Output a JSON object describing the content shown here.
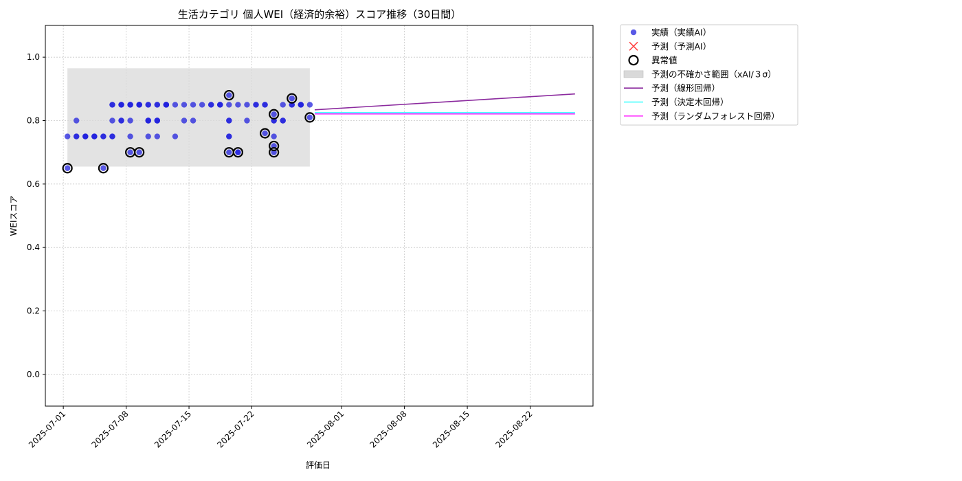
{
  "chart_data": {
    "type": "scatter",
    "title": "生活カテゴリ 個人WEI（経済的余裕）スコア推移（30日間）",
    "xlabel": "評価日",
    "ylabel": "WEIスコア",
    "xlim": [
      "2025-06-29",
      "2025-08-29"
    ],
    "ylim": [
      -0.1,
      1.1
    ],
    "yticks": [
      0.0,
      0.2,
      0.4,
      0.6,
      0.8,
      1.0
    ],
    "xticks": [
      "2025-07-01",
      "2025-07-08",
      "2025-07-15",
      "2025-07-22",
      "2025-08-01",
      "2025-08-08",
      "2025-08-15",
      "2025-08-22"
    ],
    "grid": true,
    "legend_position": "outside-top-right",
    "colors": {
      "actual": "#2222dd",
      "forecast_marker": "#ff4444",
      "anomaly_edge": "#000000",
      "uncertainty_band": "#d9d9d9",
      "linear": "#8b2a9e",
      "tree": "#33ffff",
      "forest": "#ff33ff"
    },
    "legend": [
      {
        "key": "actual",
        "label": "実績（実績AI）"
      },
      {
        "key": "forecast",
        "label": "予測（予測AI）"
      },
      {
        "key": "anomaly",
        "label": "異常値"
      },
      {
        "key": "band",
        "label": "予測の不確かさ範囲（xAI/３σ）"
      },
      {
        "key": "linear",
        "label": "予測（線形回帰）"
      },
      {
        "key": "tree",
        "label": "予測（決定木回帰）"
      },
      {
        "key": "forest",
        "label": "予測（ランダムフォレスト回帰）"
      }
    ],
    "uncertainty_band": {
      "x": [
        "2025-07-01",
        "2025-07-28"
      ],
      "y": [
        0.655,
        0.965
      ]
    },
    "series": [
      {
        "name": "実績（実績AI）",
        "points": [
          [
            "2025-07-01",
            0.75
          ],
          [
            "2025-07-01",
            0.65
          ],
          [
            "2025-07-02",
            0.75
          ],
          [
            "2025-07-02",
            0.75
          ],
          [
            "2025-07-02",
            0.8
          ],
          [
            "2025-07-03",
            0.75
          ],
          [
            "2025-07-03",
            0.75
          ],
          [
            "2025-07-03",
            0.75
          ],
          [
            "2025-07-04",
            0.75
          ],
          [
            "2025-07-04",
            0.75
          ],
          [
            "2025-07-04",
            0.75
          ],
          [
            "2025-07-05",
            0.75
          ],
          [
            "2025-07-05",
            0.65
          ],
          [
            "2025-07-05",
            0.75
          ],
          [
            "2025-07-06",
            0.85
          ],
          [
            "2025-07-06",
            0.75
          ],
          [
            "2025-07-06",
            0.85
          ],
          [
            "2025-07-06",
            0.75
          ],
          [
            "2025-07-06",
            0.8
          ],
          [
            "2025-07-07",
            0.8
          ],
          [
            "2025-07-07",
            0.8
          ],
          [
            "2025-07-07",
            0.85
          ],
          [
            "2025-07-07",
            0.85
          ],
          [
            "2025-07-07",
            0.85
          ],
          [
            "2025-07-08",
            0.85
          ],
          [
            "2025-07-08",
            0.8
          ],
          [
            "2025-07-08",
            0.85
          ],
          [
            "2025-07-08",
            0.7
          ],
          [
            "2025-07-08",
            0.75
          ],
          [
            "2025-07-08",
            0.85
          ],
          [
            "2025-07-09",
            0.85
          ],
          [
            "2025-07-09",
            0.7
          ],
          [
            "2025-07-09",
            0.85
          ],
          [
            "2025-07-09",
            0.85
          ],
          [
            "2025-07-09",
            0.85
          ],
          [
            "2025-07-10",
            0.85
          ],
          [
            "2025-07-10",
            0.8
          ],
          [
            "2025-07-10",
            0.85
          ],
          [
            "2025-07-10",
            0.8
          ],
          [
            "2025-07-10",
            0.8
          ],
          [
            "2025-07-10",
            0.75
          ],
          [
            "2025-07-11",
            0.8
          ],
          [
            "2025-07-11",
            0.75
          ],
          [
            "2025-07-11",
            0.85
          ],
          [
            "2025-07-11",
            0.8
          ],
          [
            "2025-07-11",
            0.8
          ],
          [
            "2025-07-11",
            0.85
          ],
          [
            "2025-07-12",
            0.85
          ],
          [
            "2025-07-12",
            0.85
          ],
          [
            "2025-07-12",
            0.85
          ],
          [
            "2025-07-12",
            0.85
          ],
          [
            "2025-07-13",
            0.85
          ],
          [
            "2025-07-13",
            0.75
          ],
          [
            "2025-07-14",
            0.85
          ],
          [
            "2025-07-14",
            0.8
          ],
          [
            "2025-07-15",
            0.85
          ],
          [
            "2025-07-15",
            0.8
          ],
          [
            "2025-07-16",
            0.85
          ],
          [
            "2025-07-17",
            0.85
          ],
          [
            "2025-07-17",
            0.85
          ],
          [
            "2025-07-18",
            0.85
          ],
          [
            "2025-07-18",
            0.85
          ],
          [
            "2025-07-18",
            0.85
          ],
          [
            "2025-07-19",
            0.75
          ],
          [
            "2025-07-19",
            0.88
          ],
          [
            "2025-07-19",
            0.85
          ],
          [
            "2025-07-19",
            0.8
          ],
          [
            "2025-07-19",
            0.75
          ],
          [
            "2025-07-19",
            0.7
          ],
          [
            "2025-07-19",
            0.8
          ],
          [
            "2025-07-20",
            0.85
          ],
          [
            "2025-07-20",
            0.7
          ],
          [
            "2025-07-20",
            0.7
          ],
          [
            "2025-07-21",
            0.85
          ],
          [
            "2025-07-21",
            0.8
          ],
          [
            "2025-07-22",
            0.85
          ],
          [
            "2025-07-22",
            0.85
          ],
          [
            "2025-07-23",
            0.85
          ],
          [
            "2025-07-23",
            0.76
          ],
          [
            "2025-07-23",
            0.85
          ],
          [
            "2025-07-24",
            0.75
          ],
          [
            "2025-07-24",
            0.8
          ],
          [
            "2025-07-24",
            0.82
          ],
          [
            "2025-07-24",
            0.8
          ],
          [
            "2025-07-24",
            0.7
          ],
          [
            "2025-07-24",
            0.72
          ],
          [
            "2025-07-25",
            0.85
          ],
          [
            "2025-07-25",
            0.8
          ],
          [
            "2025-07-25",
            0.8
          ],
          [
            "2025-07-26",
            0.85
          ],
          [
            "2025-07-26",
            0.85
          ],
          [
            "2025-07-26",
            0.87
          ],
          [
            "2025-07-27",
            0.85
          ],
          [
            "2025-07-27",
            0.85
          ],
          [
            "2025-07-27",
            0.85
          ],
          [
            "2025-07-28",
            0.81
          ],
          [
            "2025-07-28",
            0.85
          ]
        ]
      },
      {
        "name": "異常値",
        "points": [
          [
            "2025-07-01",
            0.65
          ],
          [
            "2025-07-05",
            0.65
          ],
          [
            "2025-07-08",
            0.7
          ],
          [
            "2025-07-09",
            0.7
          ],
          [
            "2025-07-19",
            0.88
          ],
          [
            "2025-07-19",
            0.7
          ],
          [
            "2025-07-20",
            0.7
          ],
          [
            "2025-07-23",
            0.76
          ],
          [
            "2025-07-24",
            0.82
          ],
          [
            "2025-07-24",
            0.7
          ],
          [
            "2025-07-24",
            0.72
          ],
          [
            "2025-07-26",
            0.87
          ],
          [
            "2025-07-28",
            0.81
          ]
        ]
      },
      {
        "name": "予測（線形回帰）",
        "line": [
          [
            "2025-07-29",
            0.834
          ],
          [
            "2025-08-27",
            0.884
          ]
        ]
      },
      {
        "name": "予測（決定木回帰）",
        "line": [
          [
            "2025-07-29",
            0.825
          ],
          [
            "2025-08-27",
            0.825
          ]
        ]
      },
      {
        "name": "予測（ランダムフォレスト回帰）",
        "line": [
          [
            "2025-07-29",
            0.821
          ],
          [
            "2025-08-27",
            0.821
          ]
        ]
      }
    ]
  }
}
